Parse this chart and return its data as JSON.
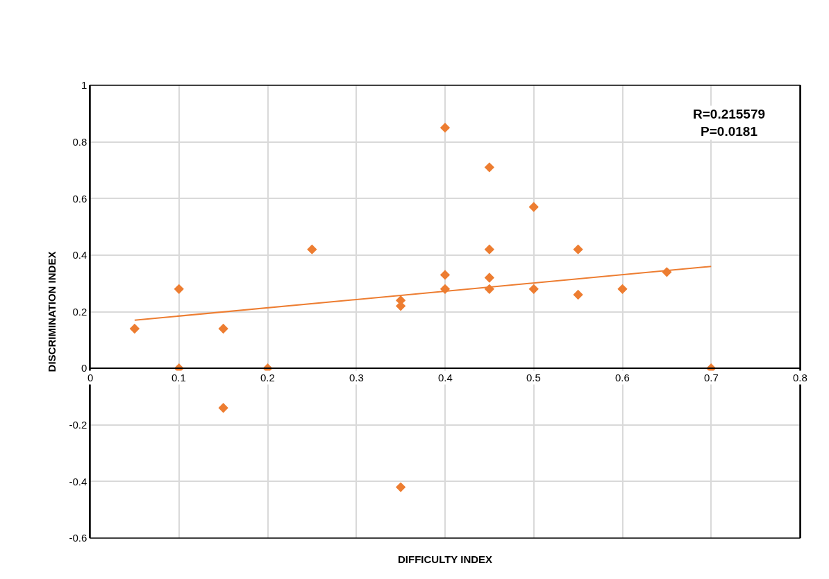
{
  "chart_data": {
    "type": "scatter",
    "xlabel": "DIFFICULTY INDEX",
    "ylabel": "DISCRIMINATION INDEX",
    "x": [
      0.05,
      0.1,
      0.1,
      0.15,
      0.15,
      0.2,
      0.25,
      0.35,
      0.35,
      0.35,
      0.4,
      0.4,
      0.4,
      0.45,
      0.45,
      0.45,
      0.45,
      0.5,
      0.5,
      0.55,
      0.55,
      0.6,
      0.65,
      0.7
    ],
    "series": [
      {
        "color": "#ed7d31",
        "marker": "diamond",
        "values": [
          0.14,
          0.28,
          0,
          0.14,
          -0.14,
          0,
          0.42,
          0.24,
          0.22,
          -0.42,
          0.85,
          0.33,
          0.28,
          0.71,
          0.42,
          0.32,
          0.28,
          0.57,
          0.28,
          0.42,
          0.26,
          0.28,
          0.34,
          0
        ]
      },
      {
        "type": "line",
        "color": "#ed7d31",
        "marker": "none",
        "x": [
          0.05,
          0.7
        ],
        "values": [
          0.17,
          0.36
        ]
      }
    ],
    "xlim": [
      0,
      0.8
    ],
    "xticks": [
      0,
      0.1,
      0.2,
      0.3,
      0.4,
      0.5,
      0.6,
      0.7,
      0.8
    ],
    "ylim": [
      -0.6,
      1
    ],
    "yticks": [
      -0.6,
      -0.4,
      -0.2,
      0,
      0.2,
      0.4,
      0.6,
      0.8,
      1
    ],
    "grid": true,
    "annotations": [
      "R=0.215579\nP=0.0181"
    ]
  }
}
